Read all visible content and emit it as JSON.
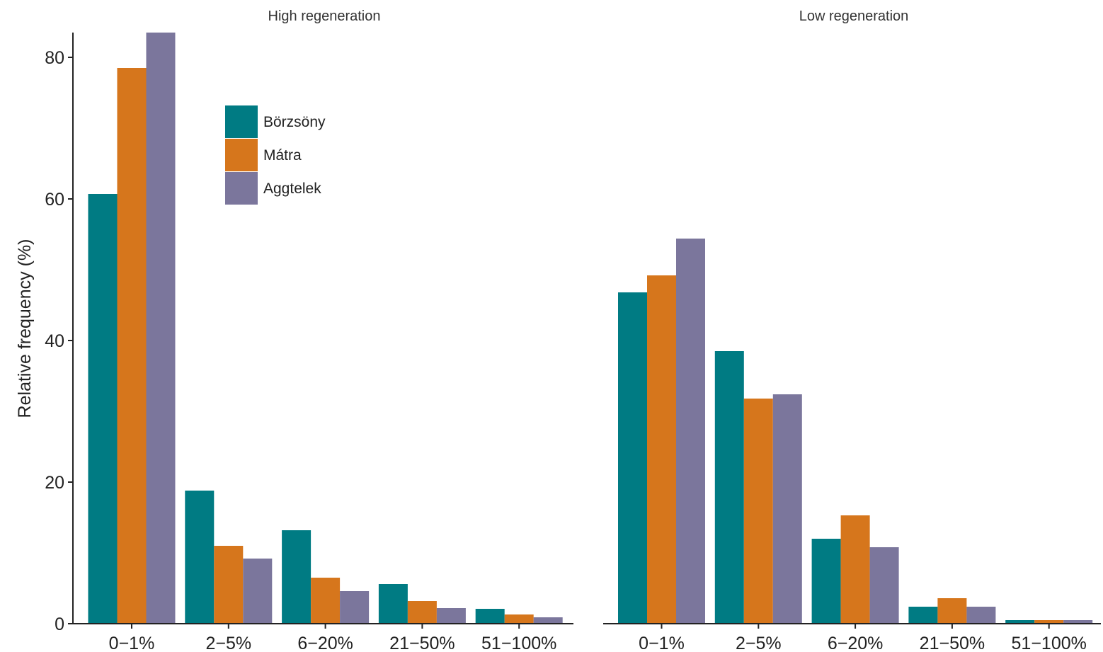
{
  "chart_data": {
    "type": "bar",
    "ylabel": "Relative frequency (%)",
    "ylim": [
      0,
      83
    ],
    "yticks": [
      0,
      20,
      40,
      60,
      80
    ],
    "categories": [
      "0−1%",
      "2−5%",
      "6−20%",
      "21−50%",
      "51−100%"
    ],
    "legend": {
      "position": "inside-top-left-panel",
      "entries": [
        {
          "name": "Börzsöny",
          "color": "#007b83"
        },
        {
          "name": "Mátra",
          "color": "#d6761c"
        },
        {
          "name": "Aggtelek",
          "color": "#7b769c"
        }
      ]
    },
    "panels": [
      {
        "title": "High regeneration",
        "series": [
          {
            "name": "Börzsöny",
            "values": [
              60.7,
              18.8,
              13.2,
              5.6,
              2.1
            ]
          },
          {
            "name": "Mátra",
            "values": [
              78.5,
              11.0,
              6.5,
              3.2,
              1.3
            ]
          },
          {
            "name": "Aggtelek",
            "values": [
              83.5,
              9.2,
              4.6,
              2.2,
              0.9
            ]
          }
        ]
      },
      {
        "title": "Low regeneration",
        "series": [
          {
            "name": "Börzsöny",
            "values": [
              46.8,
              38.5,
              12.0,
              2.4,
              0.5
            ]
          },
          {
            "name": "Mátra",
            "values": [
              49.2,
              31.8,
              15.3,
              3.6,
              0.5
            ]
          },
          {
            "name": "Aggtelek",
            "values": [
              54.4,
              32.4,
              10.8,
              2.4,
              0.5
            ]
          }
        ]
      }
    ]
  }
}
